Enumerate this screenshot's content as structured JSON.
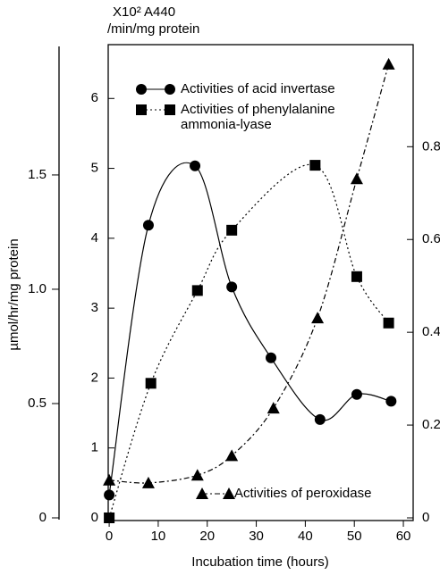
{
  "chart_data": {
    "type": "line",
    "x_label": "Incubation time (hours)",
    "y_label_top": "X10² A440",
    "y_label_top_unit": "/min/mg protein",
    "y3_label": "µmol/hr/mg protein",
    "xlim": [
      -0.2,
      62
    ],
    "xticks": [
      0,
      10,
      20,
      30,
      40,
      50,
      60
    ],
    "ylim": [
      0,
      6.77
    ],
    "yticks": [
      0,
      1,
      2,
      3,
      4,
      5,
      6
    ],
    "y2lim": [
      0,
      1.02
    ],
    "y2ticks": [
      0,
      0.2,
      0.4,
      0.6,
      0.8
    ],
    "y3lim": [
      0,
      2.07
    ],
    "y3ticks": [
      0,
      0.5,
      {
        "value": 1,
        "label": "1.0"
      },
      1.5
    ],
    "series": [
      {
        "name": "Activities of acid invertase",
        "color": "#000000",
        "marker": "circle",
        "line": "solid",
        "axis": "y3",
        "x": [
          0,
          8,
          17.5,
          25,
          33,
          43,
          50.5,
          57.5
        ],
        "values": [
          0.1,
          1.28,
          1.54,
          1.01,
          0.7,
          0.43,
          0.54,
          0.51
        ]
      },
      {
        "name": "Activities of phenylalanine ammonia-lyase",
        "color": "#000000",
        "marker": "square",
        "line": "dotted",
        "axis": "y2",
        "x": [
          0,
          8.5,
          18,
          25,
          42,
          50.5,
          57
        ],
        "values": [
          0,
          0.29,
          0.49,
          0.62,
          0.76,
          0.52,
          0.42
        ]
      },
      {
        "name": "Activities of peroxidase",
        "color": "#000000",
        "marker": "triangle",
        "line": "dashdot",
        "axis": "y",
        "x": [
          0,
          8,
          18,
          25,
          33.5,
          42.5,
          50.5,
          57
        ],
        "values": [
          0.54,
          0.5,
          0.61,
          0.89,
          1.57,
          2.86,
          4.85,
          6.49
        ]
      }
    ]
  }
}
